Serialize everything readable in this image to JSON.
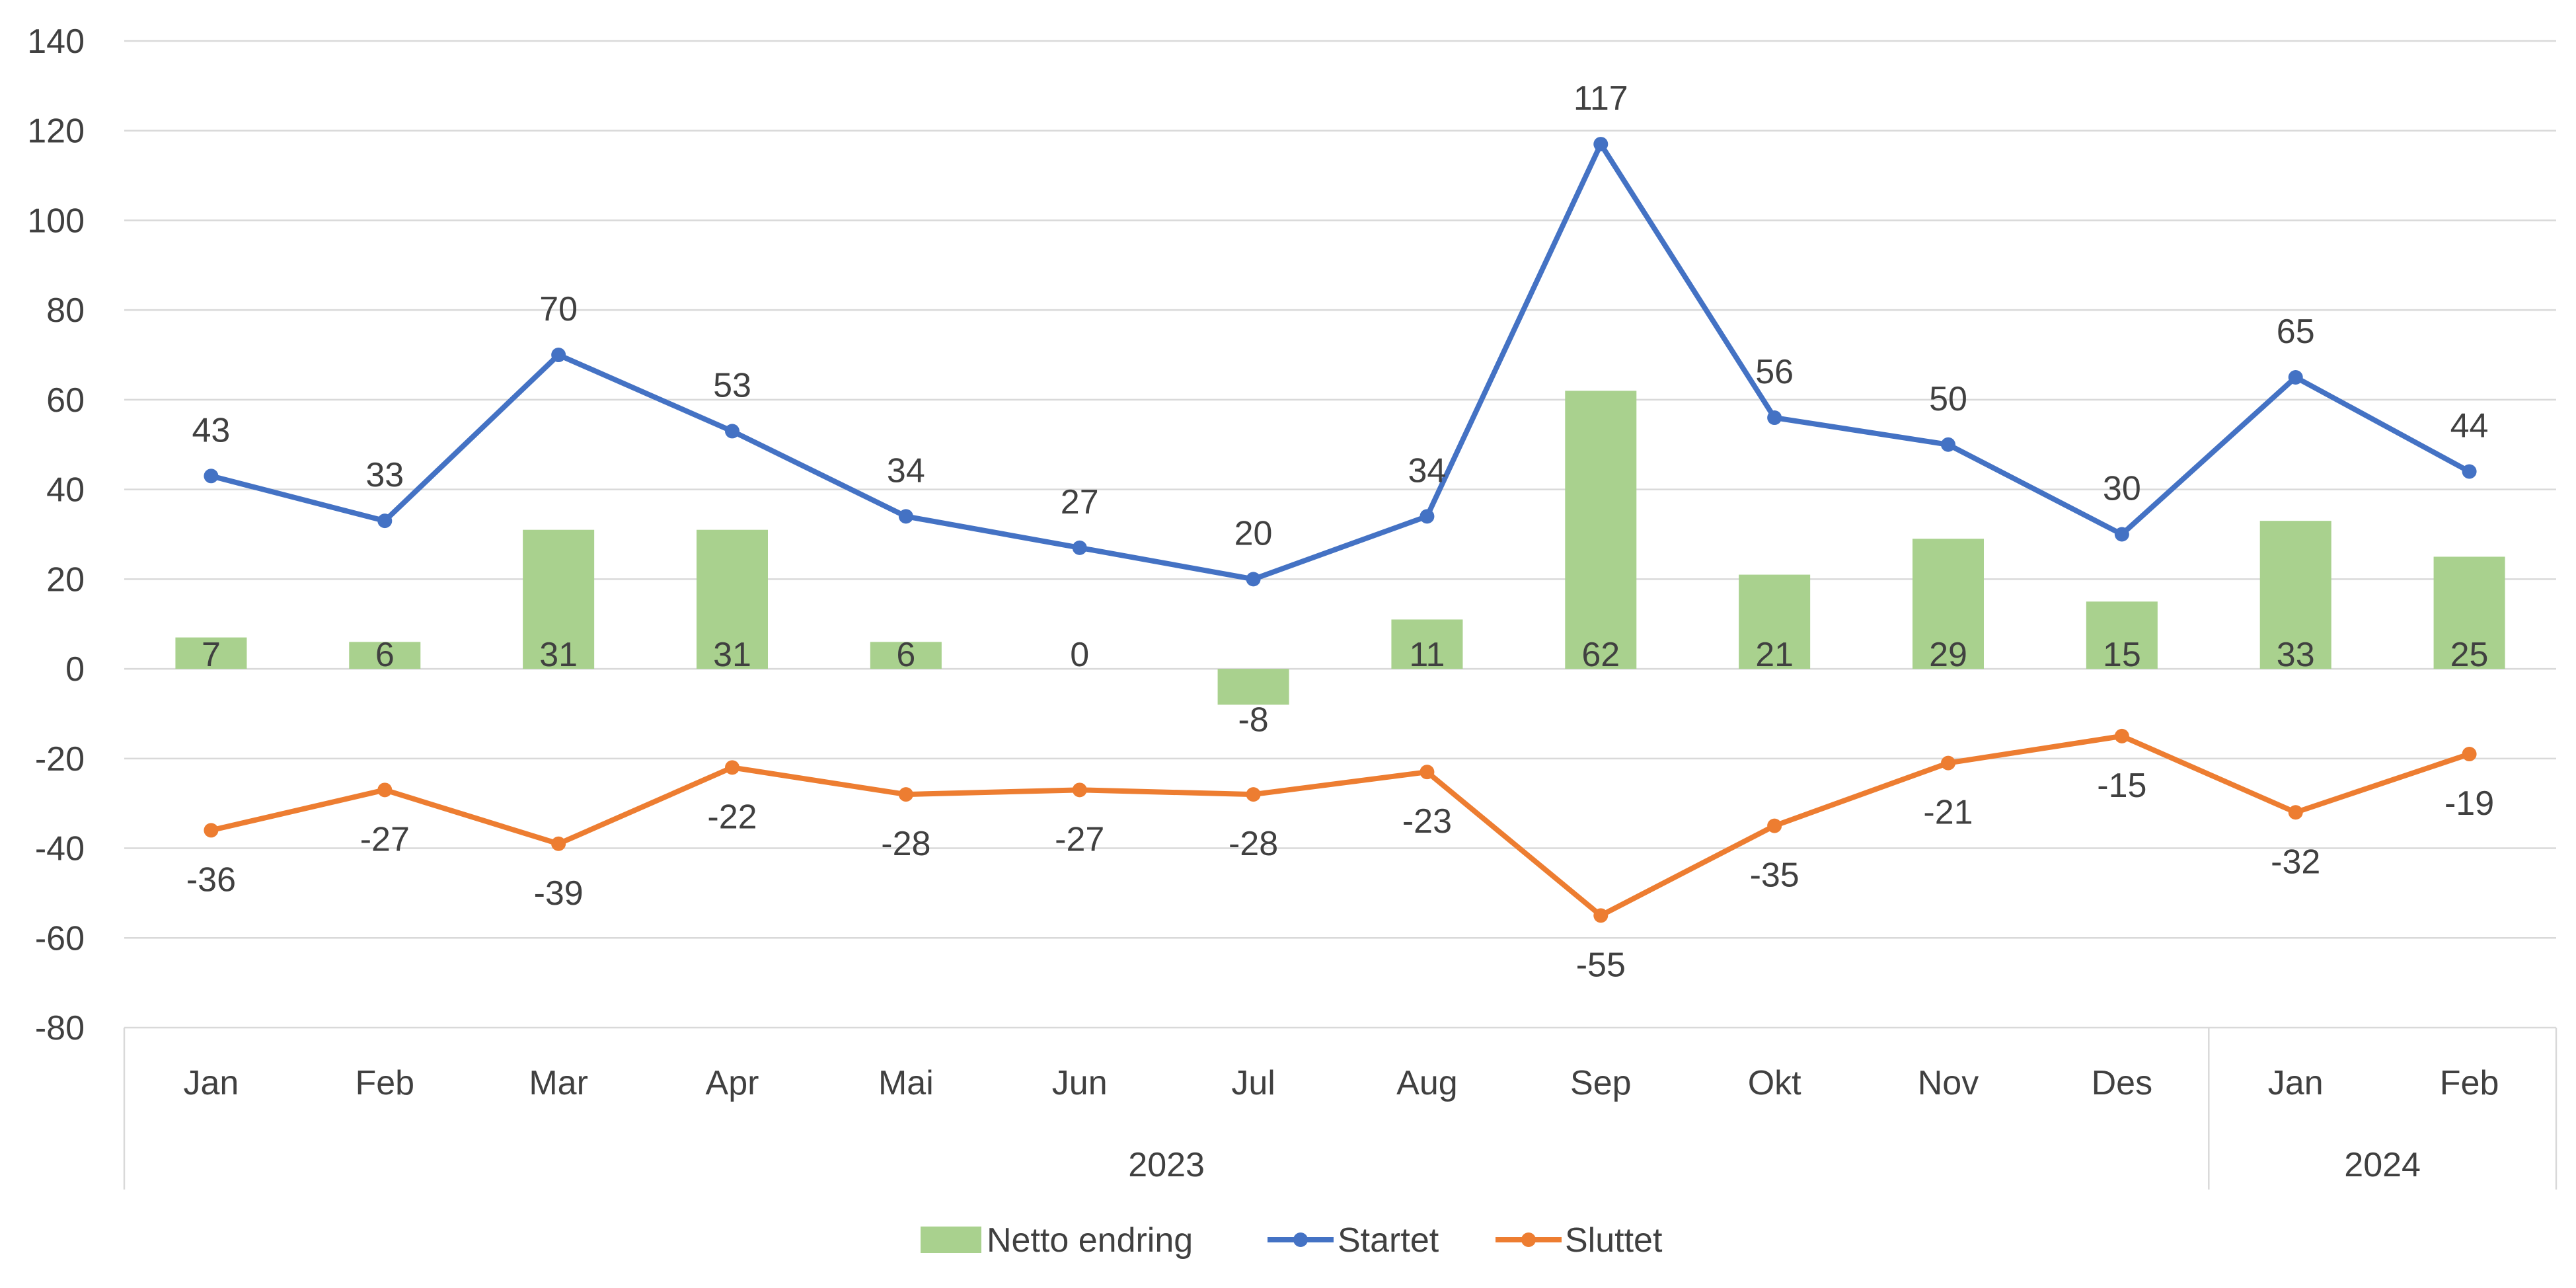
{
  "chart_data": {
    "type": "bar+line",
    "title": "",
    "xlabel": "",
    "ylabel": "",
    "ylim": [
      -80,
      140
    ],
    "yticks": [
      -80,
      -60,
      -40,
      -20,
      0,
      20,
      40,
      60,
      80,
      100,
      120,
      140
    ],
    "ytick_labels": [
      "-80",
      "-60",
      "-40",
      "-20",
      "0",
      "20",
      "40",
      "60",
      "80",
      "100",
      "120",
      "140"
    ],
    "categories": [
      "Jan",
      "Feb",
      "Mar",
      "Apr",
      "Mai",
      "Jun",
      "Jul",
      "Aug",
      "Sep",
      "Okt",
      "Nov",
      "Des",
      "Jan",
      "Feb"
    ],
    "groups": [
      {
        "label": "2023",
        "count": 12
      },
      {
        "label": "2024",
        "count": 2
      }
    ],
    "grid": true,
    "legend_position": "bottom",
    "series": [
      {
        "name": "Netto endring",
        "type": "bar",
        "color": "#a9d18e",
        "values": [
          7,
          6,
          31,
          31,
          6,
          0,
          -8,
          11,
          62,
          21,
          29,
          15,
          33,
          25
        ]
      },
      {
        "name": "Startet",
        "type": "line",
        "color": "#4472c4",
        "values": [
          43,
          33,
          70,
          53,
          34,
          27,
          20,
          34,
          117,
          56,
          50,
          30,
          65,
          44
        ]
      },
      {
        "name": "Sluttet",
        "type": "line",
        "color": "#ed7d31",
        "values": [
          -36,
          -27,
          -39,
          -22,
          -28,
          -27,
          -28,
          -23,
          -55,
          -35,
          -21,
          -15,
          -32,
          -19
        ]
      }
    ]
  }
}
